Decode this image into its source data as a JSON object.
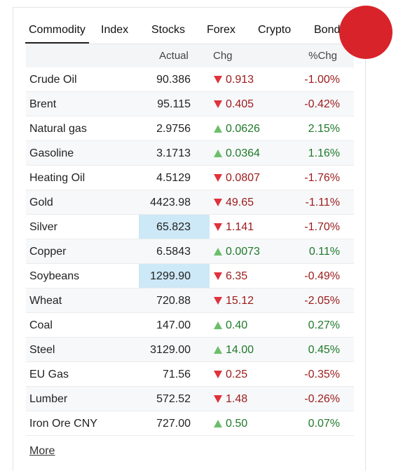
{
  "tabs": [
    "Commodity",
    "Index",
    "Stocks",
    "Forex",
    "Crypto",
    "Bonds"
  ],
  "active_tab": 0,
  "table": {
    "headers": [
      "Actual",
      "Chg",
      "%Chg"
    ],
    "rows": [
      {
        "name": "Crude Oil",
        "actual": "90.386",
        "change": "0.913",
        "percent": "-1.00%",
        "direction": "down",
        "highlight": false
      },
      {
        "name": "Brent",
        "actual": "95.115",
        "change": "0.405",
        "percent": "-0.42%",
        "direction": "down",
        "highlight": false
      },
      {
        "name": "Natural gas",
        "actual": "2.9756",
        "change": "0.0626",
        "percent": "2.15%",
        "direction": "up",
        "highlight": false
      },
      {
        "name": "Gasoline",
        "actual": "3.1713",
        "change": "0.0364",
        "percent": "1.16%",
        "direction": "up",
        "highlight": false
      },
      {
        "name": "Heating Oil",
        "actual": "4.5129",
        "change": "0.0807",
        "percent": "-1.76%",
        "direction": "down",
        "highlight": false
      },
      {
        "name": "Gold",
        "actual": "4423.98",
        "change": "49.65",
        "percent": "-1.11%",
        "direction": "down",
        "highlight": false
      },
      {
        "name": "Silver",
        "actual": "65.823",
        "change": "1.141",
        "percent": "-1.70%",
        "direction": "down",
        "highlight": true
      },
      {
        "name": "Copper",
        "actual": "6.5843",
        "change": "0.0073",
        "percent": "0.11%",
        "direction": "up",
        "highlight": false
      },
      {
        "name": "Soybeans",
        "actual": "1299.90",
        "change": "6.35",
        "percent": "-0.49%",
        "direction": "down",
        "highlight": true
      },
      {
        "name": "Wheat",
        "actual": "720.88",
        "change": "15.12",
        "percent": "-2.05%",
        "direction": "down",
        "highlight": false
      },
      {
        "name": "Coal",
        "actual": "147.00",
        "change": "0.40",
        "percent": "0.27%",
        "direction": "up",
        "highlight": false
      },
      {
        "name": "Steel",
        "actual": "3129.00",
        "change": "14.00",
        "percent": "0.45%",
        "direction": "up",
        "highlight": false
      },
      {
        "name": "EU Gas",
        "actual": "71.56",
        "change": "0.25",
        "percent": "-0.35%",
        "direction": "down",
        "highlight": false
      },
      {
        "name": "Lumber",
        "actual": "572.52",
        "change": "1.48",
        "percent": "-0.26%",
        "direction": "down",
        "highlight": false
      },
      {
        "name": "Iron Ore CNY",
        "actual": "727.00",
        "change": "0.50",
        "percent": "0.07%",
        "direction": "up",
        "highlight": false
      }
    ]
  },
  "more": "More"
}
